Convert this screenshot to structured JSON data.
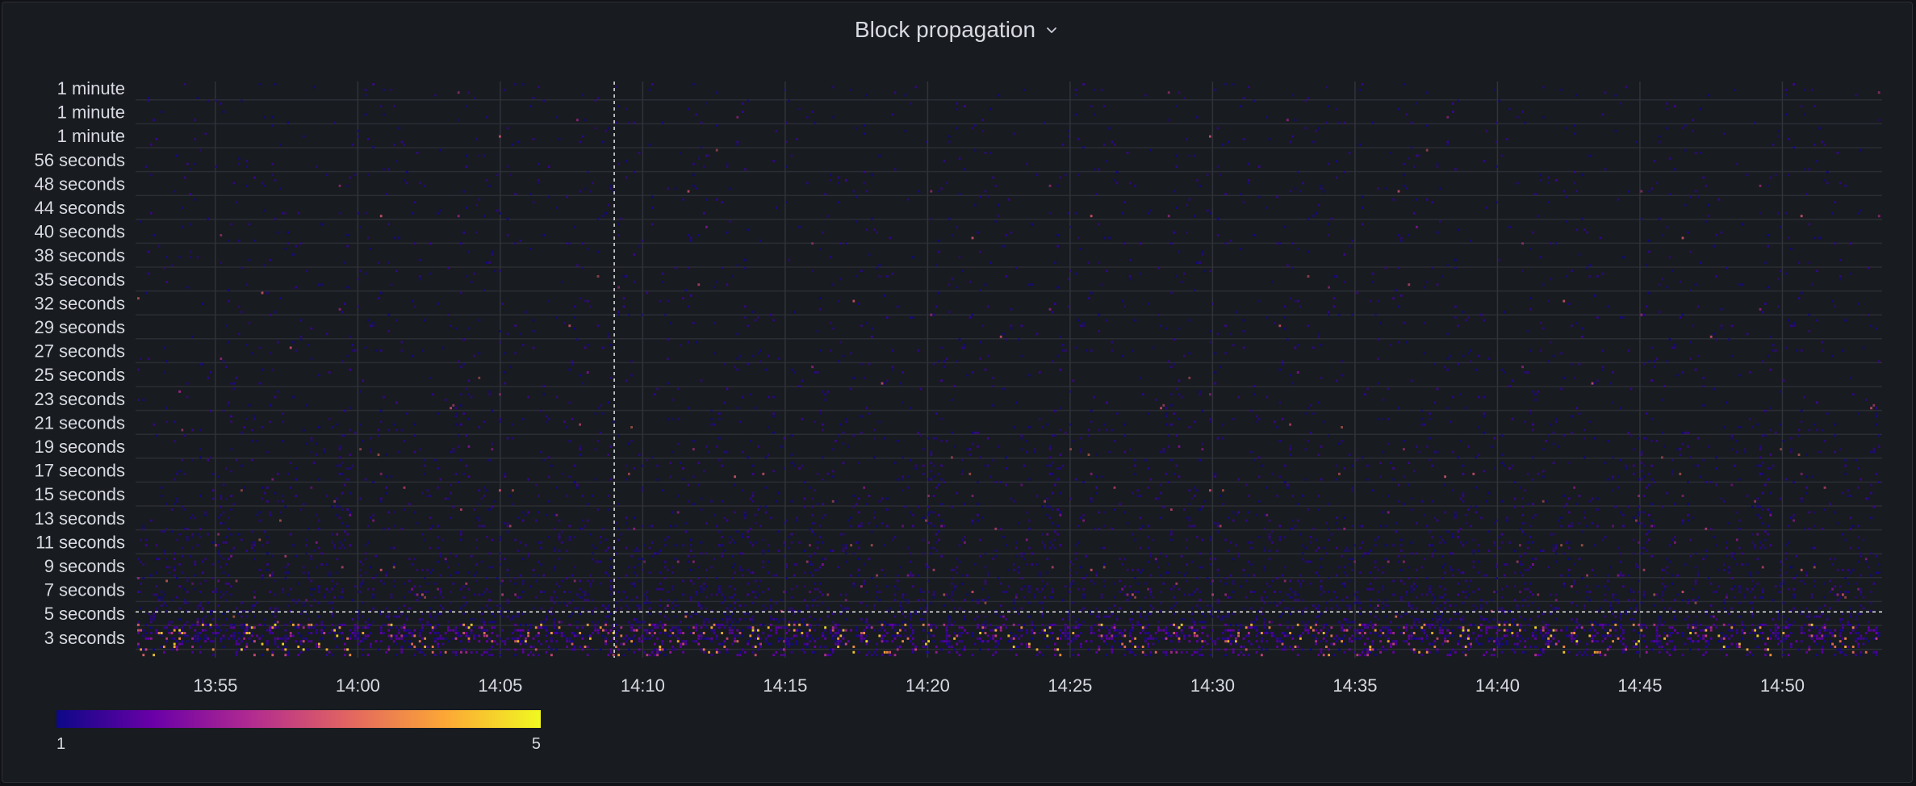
{
  "panel": {
    "title": "Block propagation",
    "menu_icon": "chevron-down-icon"
  },
  "chart_data": {
    "type": "heatmap",
    "title": "Block propagation",
    "xlabel": "",
    "ylabel": "",
    "x_tick_labels": [
      "13:55",
      "14:00",
      "14:05",
      "14:10",
      "14:15",
      "14:20",
      "14:25",
      "14:30",
      "14:35",
      "14:40",
      "14:45",
      "14:50"
    ],
    "x_tick_minutes": [
      55,
      60,
      65,
      70,
      75,
      80,
      85,
      90,
      95,
      100,
      105,
      110
    ],
    "x_range_minutes": [
      52.2,
      113.5
    ],
    "y_tick_labels": [
      "1 minute",
      "1 minute",
      "1 minute",
      "56 seconds",
      "48 seconds",
      "44 seconds",
      "40 seconds",
      "38 seconds",
      "35 seconds",
      "32 seconds",
      "29 seconds",
      "27 seconds",
      "25 seconds",
      "23 seconds",
      "21 seconds",
      "19 seconds",
      "17 seconds",
      "15 seconds",
      "13 seconds",
      "11 seconds",
      "9 seconds",
      "7 seconds",
      "5 seconds",
      "3 seconds"
    ],
    "crosshair": {
      "x_time": "14:09",
      "y_value": "5 seconds"
    },
    "color_scale": {
      "min": "1",
      "max": "5",
      "colors": [
        "#0d0887",
        "#6a00a8",
        "#b12a90",
        "#e16462",
        "#fca636",
        "#f0f921"
      ]
    },
    "cell_seed": 1337,
    "grid": true,
    "legend": "bottom-left"
  }
}
